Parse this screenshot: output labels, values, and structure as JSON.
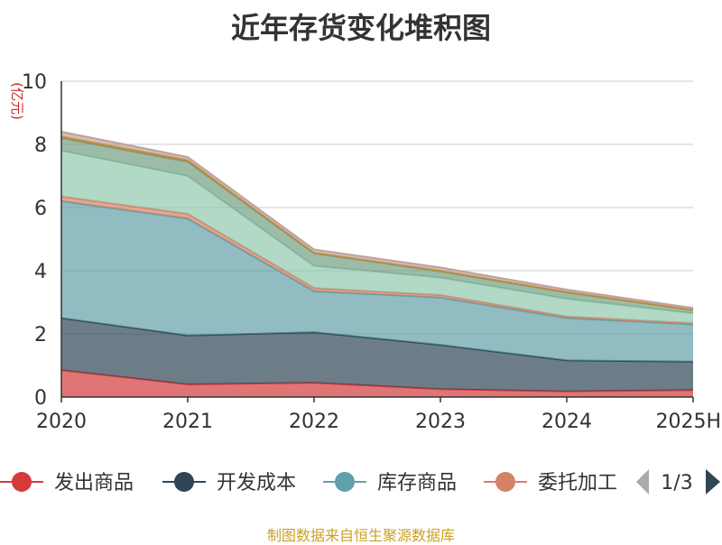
{
  "title": "近年存货变化堆积图",
  "source_note": "制图数据来自恒生聚源数据库",
  "colors": {
    "text": "#333333",
    "unit": "#cc2a2a",
    "grid": "#cccccc",
    "axis": "#333333",
    "source": "#c9a227"
  },
  "legend": {
    "page": "1/3",
    "prev_icon": "triangle-left-icon",
    "next_icon": "triangle-right-icon"
  },
  "chart_data": {
    "type": "area",
    "stacked": true,
    "unit_label": "(亿元)",
    "categories": [
      "2020",
      "2021",
      "2022",
      "2023",
      "2024",
      "2025H"
    ],
    "ylim": [
      0,
      10
    ],
    "yticks": [
      0,
      2,
      4,
      6,
      8,
      10
    ],
    "grid": true,
    "legend_position": "bottom",
    "series": [
      {
        "name": "发出商品",
        "color": "#d33b3b",
        "values": [
          0.85,
          0.4,
          0.45,
          0.25,
          0.18,
          0.22
        ]
      },
      {
        "name": "开发成本",
        "color": "#2f4656",
        "values": [
          1.65,
          1.55,
          1.6,
          1.4,
          0.98,
          0.9
        ]
      },
      {
        "name": "库存商品",
        "color": "#61a0a8",
        "values": [
          3.7,
          3.7,
          1.3,
          1.5,
          1.34,
          1.18
        ]
      },
      {
        "name": "委托加工",
        "color": "#d48265",
        "values": [
          0.15,
          0.15,
          0.1,
          0.08,
          0.05,
          0.04
        ]
      },
      {
        "color": "#91c7ae",
        "values": [
          1.45,
          1.2,
          0.7,
          0.55,
          0.56,
          0.31
        ]
      },
      {
        "color": "#749f83",
        "values": [
          0.4,
          0.45,
          0.4,
          0.2,
          0.2,
          0.1
        ]
      },
      {
        "color": "#ca8622",
        "values": [
          0.05,
          0.05,
          0.02,
          0.02,
          0.02,
          0.01
        ]
      },
      {
        "color": "#bda29a",
        "values": [
          0.15,
          0.1,
          0.1,
          0.1,
          0.07,
          0.06
        ]
      }
    ]
  }
}
